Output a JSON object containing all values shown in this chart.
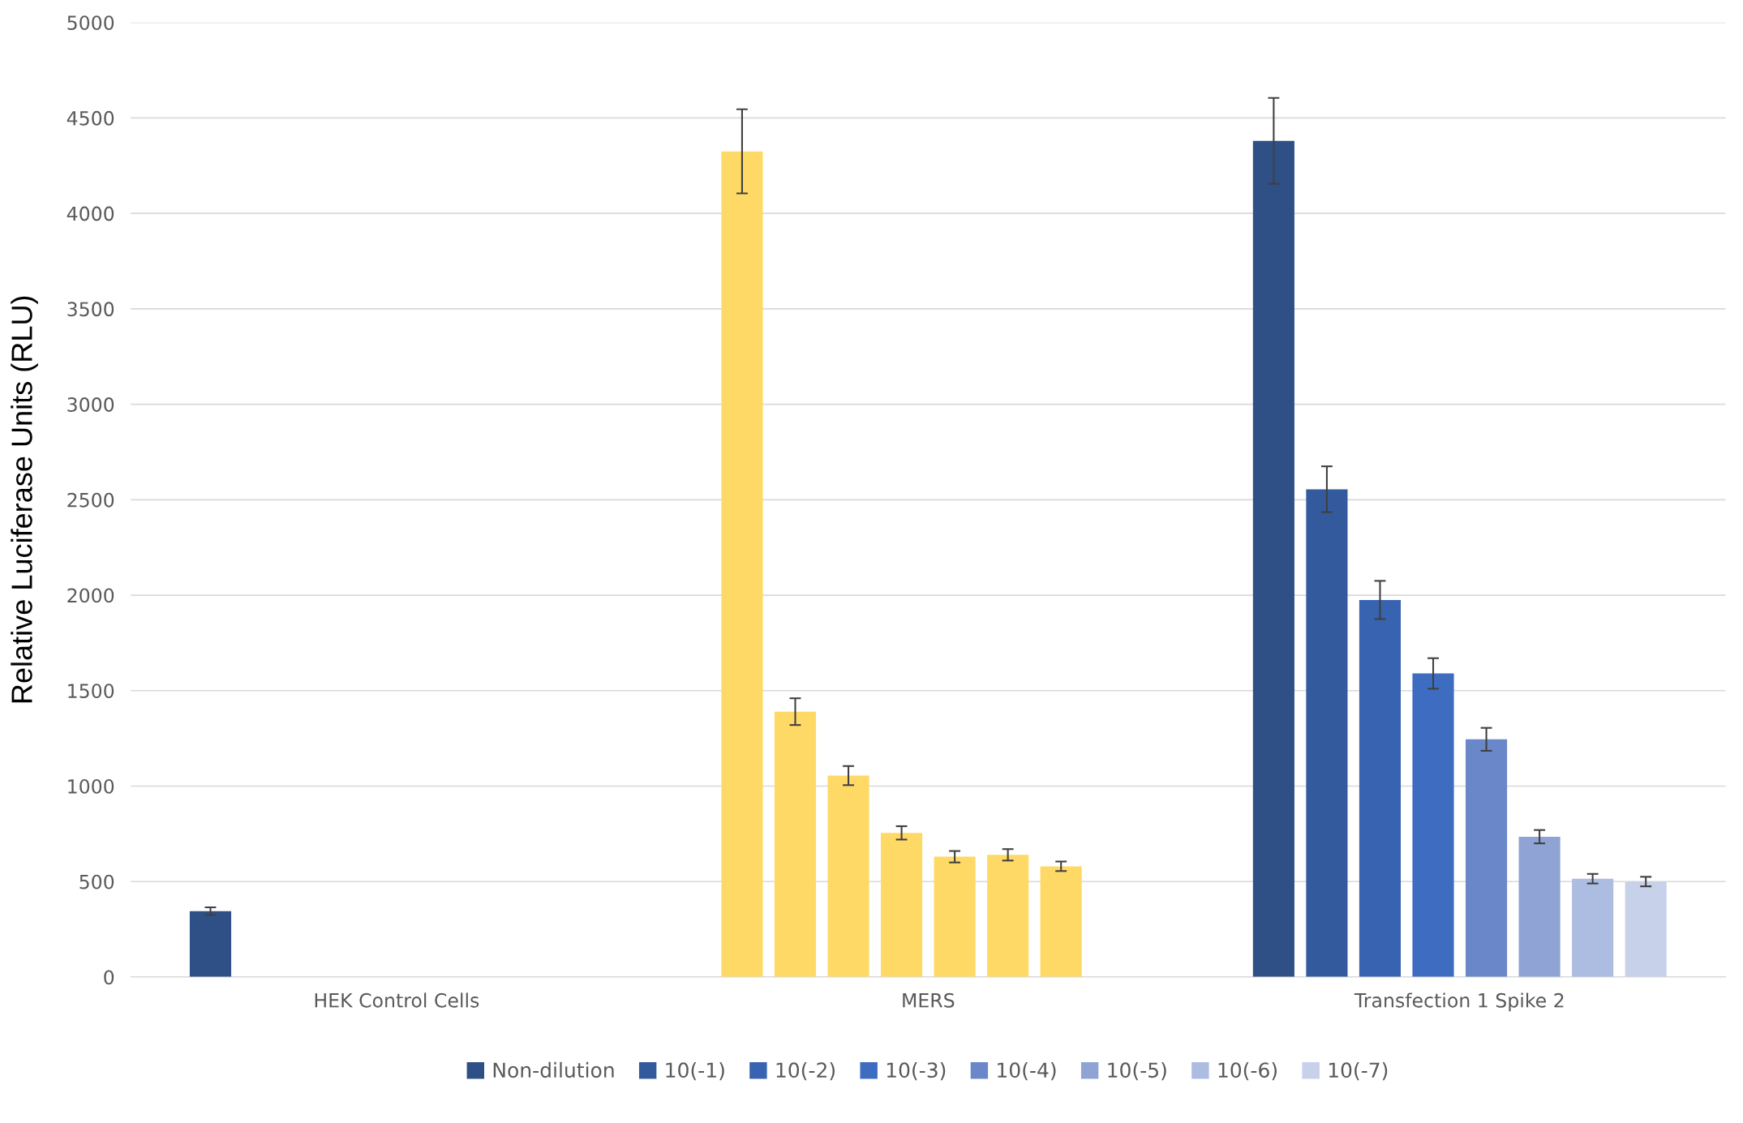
{
  "chart_data": {
    "type": "bar",
    "ylabel": "Relative Luciferase Units (RLU)",
    "categories": [
      "HEK Control Cells",
      "MERS",
      "Transfection 1 Spike 2"
    ],
    "series": [
      {
        "name": "Non-dilution",
        "color": "#2f4f87",
        "colors": [
          "#2f4f87",
          "#ffd966",
          "#2f4f87"
        ],
        "values": [
          345,
          4325,
          4380
        ],
        "errors": [
          20,
          220,
          225
        ]
      },
      {
        "name": "10(-1)",
        "color": "#345a9e",
        "colors": [
          "#345a9e",
          "#ffd966",
          "#345a9e"
        ],
        "values": [
          null,
          1390,
          2555
        ],
        "errors": [
          null,
          70,
          120
        ]
      },
      {
        "name": "10(-2)",
        "color": "#3863b0",
        "colors": [
          "#3863b0",
          "#ffd966",
          "#3863b0"
        ],
        "values": [
          null,
          1055,
          1975
        ],
        "errors": [
          null,
          50,
          100
        ]
      },
      {
        "name": "10(-3)",
        "color": "#3d6cc0",
        "colors": [
          "#3d6cc0",
          "#ffd966",
          "#3d6cc0"
        ],
        "values": [
          null,
          755,
          1590
        ],
        "errors": [
          null,
          35,
          80
        ]
      },
      {
        "name": "10(-4)",
        "color": "#6a88c9",
        "colors": [
          "#6a88c9",
          "#ffd966",
          "#6a88c9"
        ],
        "values": [
          null,
          630,
          1245
        ],
        "errors": [
          null,
          30,
          60
        ]
      },
      {
        "name": "10(-5)",
        "color": "#8fa4d4",
        "colors": [
          "#8fa4d4",
          "#ffd966",
          "#8fa4d4"
        ],
        "values": [
          null,
          640,
          735
        ],
        "errors": [
          null,
          30,
          35
        ]
      },
      {
        "name": "10(-6)",
        "color": "#adbde2",
        "colors": [
          "#adbde2",
          "#ffd966",
          "#adbde2"
        ],
        "values": [
          null,
          580,
          515
        ],
        "errors": [
          null,
          25,
          25
        ]
      },
      {
        "name": "10(-7)",
        "color": "#c8d1ea",
        "colors": [
          "#c8d1ea",
          "#ffd966",
          "#c8d1ea"
        ],
        "values": [
          null,
          null,
          500
        ],
        "errors": [
          null,
          null,
          25
        ]
      }
    ],
    "ylim": [
      0,
      5000
    ],
    "yticks": [
      0,
      500,
      1000,
      1500,
      2000,
      2500,
      3000,
      3500,
      4000,
      4500,
      5000
    ],
    "grid": "y",
    "legend": "bottom"
  }
}
